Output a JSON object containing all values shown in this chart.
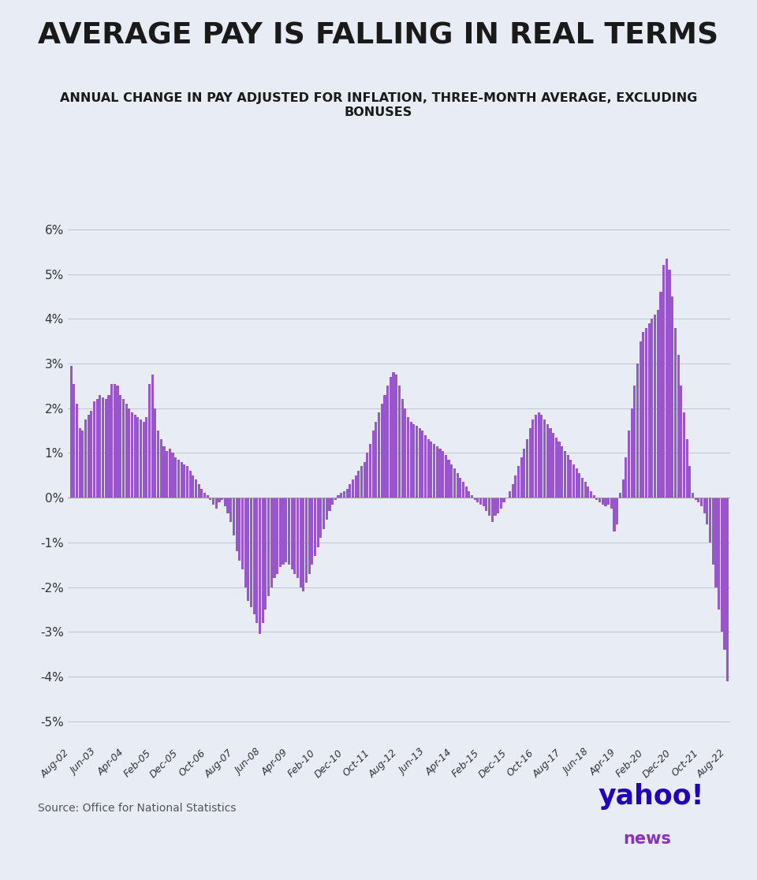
{
  "title": "AVERAGE PAY IS FALLING IN REAL TERMS",
  "subtitle": "ANNUAL CHANGE IN PAY ADJUSTED FOR INFLATION, THREE-MONTH AVERAGE, EXCLUDING\nBONUSES",
  "source": "Source: Office for National Statistics",
  "bar_color": "#9955cc",
  "background_color": "#e8ecf5",
  "ylim": [
    -5.5,
    6.8
  ],
  "yticks": [
    -5,
    -4,
    -3,
    -2,
    -1,
    0,
    1,
    2,
    3,
    4,
    5,
    6
  ],
  "ytick_labels": [
    "-5%",
    "-4%",
    "-3%",
    "-2%",
    "-1%",
    "0%",
    "1%",
    "2%",
    "3%",
    "4%",
    "5%",
    "6%"
  ],
  "tick_labels": [
    "Aug-02",
    "Jun-03",
    "Apr-04",
    "Feb-05",
    "Dec-05",
    "Oct-06",
    "Aug-07",
    "Jun-08",
    "Apr-09",
    "Feb-10",
    "Dec-10",
    "Oct-11",
    "Aug-12",
    "Jun-13",
    "Apr-14",
    "Feb-15",
    "Dec-15",
    "Oct-16",
    "Aug-17",
    "Jun-18",
    "Apr-19",
    "Feb-20",
    "Dec-20",
    "Oct-21",
    "Aug-22"
  ],
  "values": [
    2.95,
    2.55,
    2.1,
    1.55,
    1.5,
    1.75,
    1.85,
    1.95,
    2.15,
    2.2,
    2.3,
    2.25,
    2.2,
    2.3,
    2.55,
    2.55,
    2.5,
    2.3,
    2.2,
    2.1,
    2.0,
    1.9,
    1.85,
    1.8,
    1.75,
    1.7,
    1.8,
    2.55,
    2.75,
    2.0,
    1.5,
    1.3,
    1.15,
    1.05,
    1.1,
    1.0,
    0.9,
    0.85,
    0.8,
    0.75,
    0.7,
    0.6,
    0.5,
    0.4,
    0.3,
    0.2,
    0.1,
    0.05,
    -0.05,
    -0.15,
    -0.25,
    -0.1,
    -0.05,
    -0.2,
    -0.35,
    -0.55,
    -0.85,
    -1.2,
    -1.4,
    -1.6,
    -2.0,
    -2.3,
    -2.45,
    -2.6,
    -2.8,
    -3.05,
    -2.8,
    -2.5,
    -2.2,
    -2.0,
    -1.8,
    -1.7,
    -1.55,
    -1.5,
    -1.45,
    -1.5,
    -1.6,
    -1.7,
    -1.8,
    -2.0,
    -2.1,
    -1.9,
    -1.7,
    -1.5,
    -1.3,
    -1.1,
    -0.9,
    -0.7,
    -0.5,
    -0.3,
    -0.15,
    -0.05,
    0.05,
    0.1,
    0.15,
    0.2,
    0.3,
    0.4,
    0.5,
    0.6,
    0.7,
    0.8,
    1.0,
    1.2,
    1.5,
    1.7,
    1.9,
    2.1,
    2.3,
    2.5,
    2.7,
    2.8,
    2.75,
    2.5,
    2.2,
    2.0,
    1.8,
    1.7,
    1.65,
    1.6,
    1.55,
    1.5,
    1.4,
    1.3,
    1.25,
    1.2,
    1.15,
    1.1,
    1.05,
    0.95,
    0.85,
    0.75,
    0.65,
    0.55,
    0.45,
    0.35,
    0.25,
    0.15,
    0.05,
    -0.05,
    -0.1,
    -0.15,
    -0.2,
    -0.3,
    -0.4,
    -0.55,
    -0.4,
    -0.35,
    -0.25,
    -0.1,
    0.0,
    0.15,
    0.3,
    0.5,
    0.7,
    0.9,
    1.1,
    1.3,
    1.55,
    1.75,
    1.85,
    1.9,
    1.85,
    1.75,
    1.65,
    1.55,
    1.45,
    1.35,
    1.25,
    1.15,
    1.05,
    0.95,
    0.85,
    0.75,
    0.65,
    0.55,
    0.45,
    0.35,
    0.25,
    0.15,
    0.05,
    -0.05,
    -0.1,
    -0.15,
    -0.2,
    -0.15,
    -0.25,
    -0.75,
    -0.6,
    0.1,
    0.4,
    0.9,
    1.5,
    2.0,
    2.5,
    3.0,
    3.5,
    3.7,
    3.8,
    3.9,
    4.0,
    4.1,
    4.2,
    4.6,
    5.2,
    5.35,
    5.1,
    4.5,
    3.8,
    3.2,
    2.5,
    1.9,
    1.3,
    0.7,
    0.1,
    -0.05,
    -0.1,
    -0.2,
    -0.35,
    -0.6,
    -1.0,
    -1.5,
    -2.0,
    -2.5,
    -3.0,
    -3.4,
    -4.1
  ]
}
